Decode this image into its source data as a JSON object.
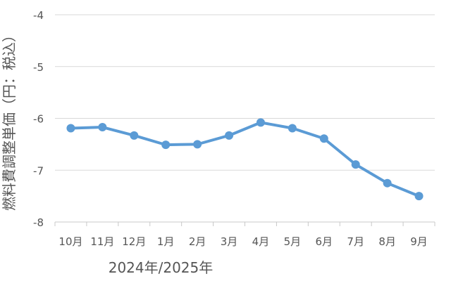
{
  "chart_data": {
    "type": "line",
    "title": "",
    "xlabel": "2024年/2025年",
    "ylabel": "燃料費調整単価（円：税込）",
    "categories": [
      "10月",
      "11月",
      "12月",
      "1月",
      "2月",
      "3月",
      "4月",
      "5月",
      "6月",
      "7月",
      "8月",
      "9月"
    ],
    "series": [
      {
        "values": [
          -6.19,
          -6.17,
          -6.33,
          -6.51,
          -6.5,
          -6.33,
          -6.08,
          -6.19,
          -6.39,
          -6.89,
          -7.25,
          -7.5
        ],
        "color": "#5b9bd5"
      }
    ],
    "ylim": [
      -8,
      -4
    ],
    "yticks": [
      -4,
      -5,
      -6,
      -7,
      -8
    ],
    "grid": true,
    "legend": "none"
  }
}
